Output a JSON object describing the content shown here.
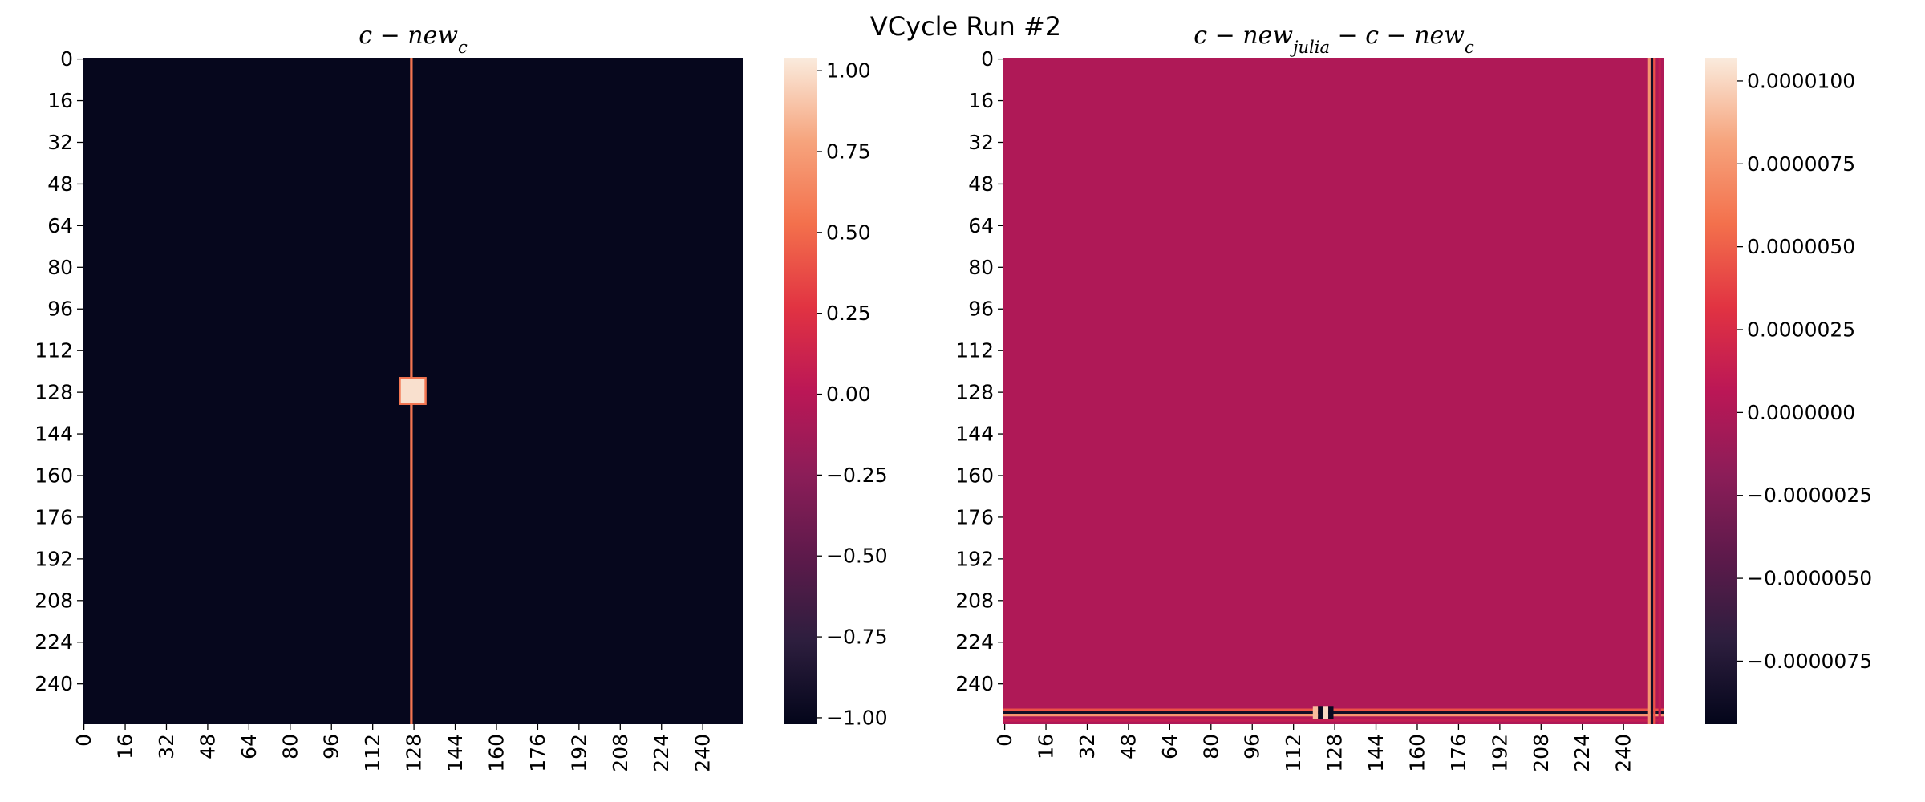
{
  "figure": {
    "suptitle": "VCycle Run #2"
  },
  "colormap": {
    "name": "rocket",
    "stops": [
      "#03051a",
      "#2d1e3e",
      "#5d1a4b",
      "#8c1d58",
      "#bb1756",
      "#e13342",
      "#f3704c",
      "#f6a47d",
      "#faebdd"
    ]
  },
  "chart_data": [
    {
      "type": "heatmap",
      "title": "c − new_c",
      "title_parts": {
        "base": "c − new",
        "sub": "c"
      },
      "grid": false,
      "shape": [
        256,
        256
      ],
      "x_tick_labels": [
        "0",
        "16",
        "32",
        "48",
        "64",
        "80",
        "96",
        "112",
        "128",
        "144",
        "160",
        "176",
        "192",
        "208",
        "224",
        "240"
      ],
      "y_tick_labels": [
        "0",
        "16",
        "32",
        "48",
        "64",
        "80",
        "96",
        "112",
        "128",
        "144",
        "160",
        "176",
        "192",
        "208",
        "224",
        "240"
      ],
      "tick_step": 16,
      "vmin": -1.02,
      "vmax": 1.04,
      "colorbar_ticks": [
        -1.0,
        -0.75,
        -0.5,
        -0.25,
        0.0,
        0.25,
        0.5,
        0.75,
        1.0
      ],
      "colorbar_tick_labels": [
        "−1.00",
        "−0.75",
        "−0.50",
        "−0.25",
        "0.00",
        "0.25",
        "0.50",
        "0.75",
        "1.00"
      ],
      "background_value": -1.0,
      "features": [
        {
          "kind": "column_line",
          "col": 127,
          "row_start": 0,
          "row_end": 255,
          "value": 0.55
        },
        {
          "kind": "block",
          "row_start": 123,
          "row_end": 132,
          "col_start": 123,
          "col_end": 132,
          "value": 1.0
        }
      ]
    },
    {
      "type": "heatmap",
      "title": "c − new_julia − c − new_c",
      "title_parts": {
        "base1": "c − new",
        "sub1": "julia",
        "mid": " − c − new",
        "sub2": "c"
      },
      "grid": false,
      "shape": [
        256,
        256
      ],
      "x_tick_labels": [
        "0",
        "16",
        "32",
        "48",
        "64",
        "80",
        "96",
        "112",
        "128",
        "144",
        "160",
        "176",
        "192",
        "208",
        "224",
        "240"
      ],
      "y_tick_labels": [
        "0",
        "16",
        "32",
        "48",
        "64",
        "80",
        "96",
        "112",
        "128",
        "144",
        "160",
        "176",
        "192",
        "208",
        "224",
        "240"
      ],
      "tick_step": 16,
      "vmin": -9.4e-06,
      "vmax": 1.07e-05,
      "colorbar_ticks": [
        -7.5e-06,
        -5e-06,
        -2.5e-06,
        0.0,
        2.5e-06,
        5e-06,
        7.5e-06,
        1e-05
      ],
      "colorbar_tick_labels": [
        "−0.0000075",
        "−0.0000050",
        "−0.0000025",
        "0.0000000",
        "0.0000025",
        "0.0000050",
        "0.0000075",
        "0.0000100"
      ],
      "background_value": 0.0,
      "features": [
        {
          "kind": "row_line",
          "row": 250,
          "col_start": 0,
          "col_end": 255,
          "value": 4.5e-06
        },
        {
          "kind": "row_line",
          "row": 251,
          "col_start": 0,
          "col_end": 255,
          "value": -8.5e-06
        },
        {
          "kind": "row_line",
          "row": 252,
          "col_start": 0,
          "col_end": 255,
          "value": 7.5e-06
        },
        {
          "kind": "row_line",
          "row": 254,
          "col_start": 0,
          "col_end": 255,
          "value": 1.2e-06
        },
        {
          "kind": "column_line",
          "col": 250,
          "row_start": 0,
          "row_end": 255,
          "value": 7.5e-06
        },
        {
          "kind": "column_line",
          "col": 251,
          "row_start": 0,
          "row_end": 255,
          "value": -8.5e-06
        },
        {
          "kind": "column_line",
          "col": 252,
          "row_start": 0,
          "row_end": 255,
          "value": 4.5e-06
        },
        {
          "kind": "column_line",
          "col": 254,
          "row_start": 0,
          "row_end": 255,
          "value": 1.2e-06
        },
        {
          "kind": "block",
          "row_start": 249,
          "row_end": 253,
          "col_start": 120,
          "col_end": 121,
          "value": 9e-06
        },
        {
          "kind": "block",
          "row_start": 249,
          "row_end": 253,
          "col_start": 122,
          "col_end": 123,
          "value": -9e-06
        },
        {
          "kind": "block",
          "row_start": 249,
          "row_end": 253,
          "col_start": 124,
          "col_end": 125,
          "value": 1e-05
        },
        {
          "kind": "block",
          "row_start": 249,
          "row_end": 253,
          "col_start": 126,
          "col_end": 127,
          "value": -9e-06
        }
      ]
    }
  ]
}
